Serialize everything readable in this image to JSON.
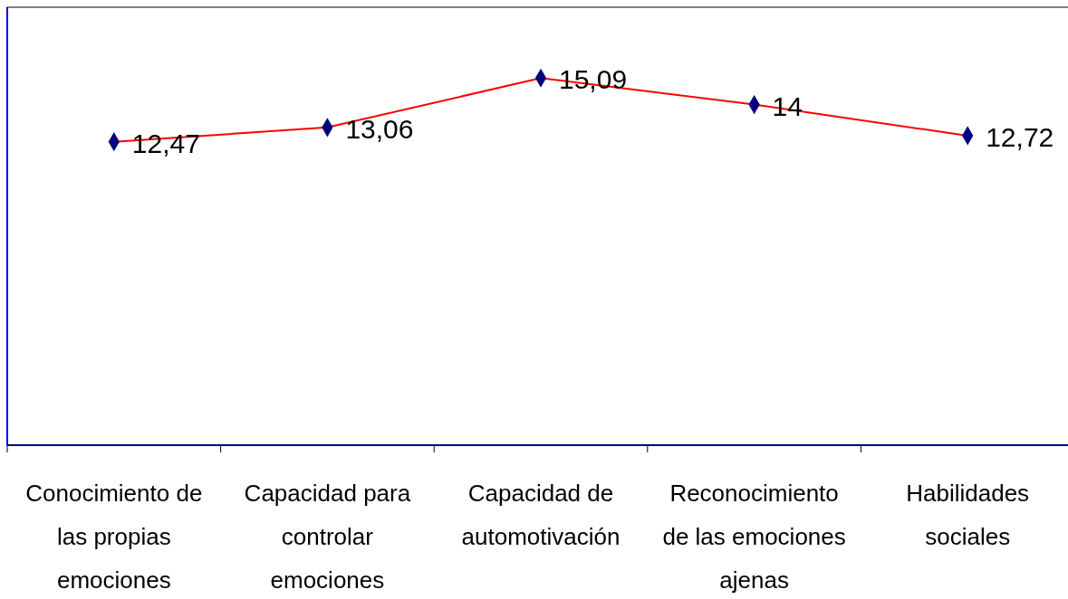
{
  "chart_data": {
    "type": "line",
    "categories": [
      [
        "Conocimiento de",
        "las propias",
        "emociones"
      ],
      [
        "Capacidad para",
        "controlar",
        "emociones"
      ],
      [
        "Capacidad de",
        "automotivación"
      ],
      [
        "Reconocimiento",
        "de las emociones",
        "ajenas"
      ],
      [
        "Habilidades",
        "sociales"
      ]
    ],
    "series": [
      {
        "color": "#ff0000",
        "values": [
          12.47,
          13.06,
          15.09,
          14,
          12.72
        ],
        "value_labels": [
          "12,47",
          "13,06",
          "15,09",
          "14",
          "12,72"
        ]
      }
    ],
    "marker": "diamond",
    "ylim": [
      0,
      18
    ],
    "tick_labels": "x"
  }
}
